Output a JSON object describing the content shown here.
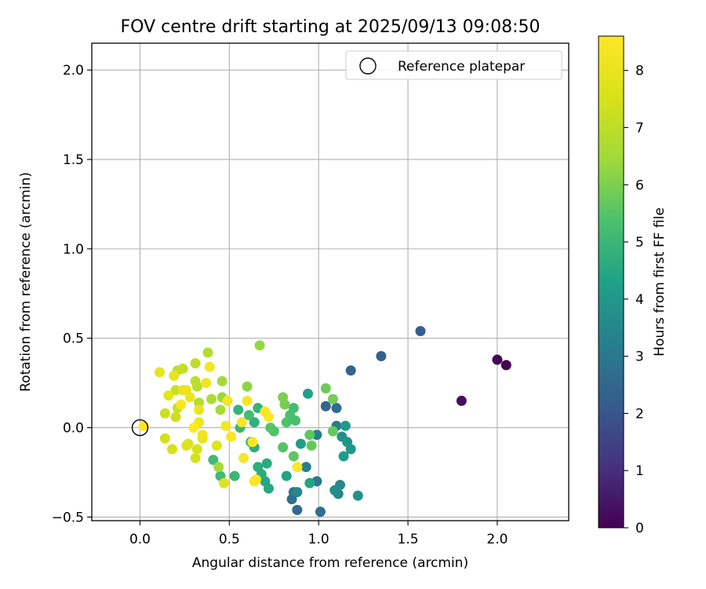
{
  "chart_data": {
    "type": "scatter",
    "title": "FOV centre drift starting at 2025/09/13 09:08:50",
    "xlabel": "Angular distance from reference (arcmin)",
    "ylabel": "Rotation from reference (arcmin)",
    "xlim": [
      -0.27,
      2.4
    ],
    "ylim": [
      -0.52,
      2.15
    ],
    "xticks": [
      0.0,
      0.5,
      1.0,
      1.5,
      2.0
    ],
    "yticks": [
      -0.5,
      0.0,
      0.5,
      1.0,
      1.5,
      2.0
    ],
    "xtick_labels": [
      "0.0",
      "0.5",
      "1.0",
      "1.5",
      "2.0"
    ],
    "ytick_labels": [
      "−0.5",
      "0.0",
      "0.5",
      "1.0",
      "1.5",
      "2.0"
    ],
    "grid": true,
    "legend": {
      "position": "top-right",
      "label": "Reference platepar",
      "marker": "open-circle"
    },
    "reference_point": {
      "x": 0.0,
      "y": 0.0
    },
    "colorbar": {
      "label": "Hours from first FF file",
      "min": 0,
      "max": 8.6,
      "ticks": [
        0,
        1,
        2,
        3,
        4,
        5,
        6,
        7,
        8
      ],
      "tick_labels": [
        "0",
        "1",
        "2",
        "3",
        "4",
        "5",
        "6",
        "7",
        "8"
      ],
      "colormap": "viridis"
    },
    "series": [
      {
        "points": [
          {
            "x": 2.05,
            "y": 0.35,
            "c": 0.0
          },
          {
            "x": 2.0,
            "y": 0.38,
            "c": 0.1
          },
          {
            "x": 1.8,
            "y": 0.15,
            "c": 0.3
          },
          {
            "x": 1.57,
            "y": 0.54,
            "c": 2.2
          },
          {
            "x": 1.35,
            "y": 0.4,
            "c": 2.3
          },
          {
            "x": 1.18,
            "y": 0.32,
            "c": 2.4
          },
          {
            "x": 1.04,
            "y": 0.12,
            "c": 2.5
          },
          {
            "x": 1.1,
            "y": 0.11,
            "c": 2.6
          },
          {
            "x": 0.88,
            "y": -0.46,
            "c": 2.6
          },
          {
            "x": 1.01,
            "y": -0.47,
            "c": 2.7
          },
          {
            "x": 0.85,
            "y": -0.4,
            "c": 2.8
          },
          {
            "x": 0.86,
            "y": -0.36,
            "c": 2.9
          },
          {
            "x": 0.99,
            "y": -0.3,
            "c": 3.0
          },
          {
            "x": 1.1,
            "y": 0.01,
            "c": 3.1
          },
          {
            "x": 0.99,
            "y": -0.04,
            "c": 3.2
          },
          {
            "x": 0.93,
            "y": -0.22,
            "c": 3.3
          },
          {
            "x": 0.88,
            "y": -0.36,
            "c": 3.4
          },
          {
            "x": 1.12,
            "y": -0.32,
            "c": 3.5
          },
          {
            "x": 1.11,
            "y": -0.37,
            "c": 3.6
          },
          {
            "x": 1.09,
            "y": -0.35,
            "c": 3.7
          },
          {
            "x": 1.22,
            "y": -0.38,
            "c": 3.8
          },
          {
            "x": 1.13,
            "y": -0.05,
            "c": 3.8
          },
          {
            "x": 1.16,
            "y": -0.08,
            "c": 3.9
          },
          {
            "x": 1.18,
            "y": -0.12,
            "c": 4.0
          },
          {
            "x": 1.14,
            "y": -0.16,
            "c": 4.1
          },
          {
            "x": 1.15,
            "y": 0.01,
            "c": 4.1
          },
          {
            "x": 0.9,
            "y": -0.09,
            "c": 4.2
          },
          {
            "x": 0.94,
            "y": 0.19,
            "c": 4.3
          },
          {
            "x": 0.95,
            "y": -0.31,
            "c": 4.4
          },
          {
            "x": 0.82,
            "y": -0.27,
            "c": 4.4
          },
          {
            "x": 0.72,
            "y": -0.34,
            "c": 4.5
          },
          {
            "x": 0.7,
            "y": -0.3,
            "c": 4.5
          },
          {
            "x": 0.71,
            "y": -0.2,
            "c": 4.6
          },
          {
            "x": 0.68,
            "y": -0.26,
            "c": 4.6
          },
          {
            "x": 0.66,
            "y": -0.22,
            "c": 4.7
          },
          {
            "x": 0.64,
            "y": -0.11,
            "c": 4.7
          },
          {
            "x": 0.62,
            "y": -0.08,
            "c": 4.8
          },
          {
            "x": 0.64,
            "y": 0.03,
            "c": 4.8
          },
          {
            "x": 0.66,
            "y": 0.11,
            "c": 4.9
          },
          {
            "x": 0.55,
            "y": 0.1,
            "c": 4.9
          },
          {
            "x": 0.56,
            "y": 0.0,
            "c": 5.0
          },
          {
            "x": 0.53,
            "y": -0.27,
            "c": 5.0
          },
          {
            "x": 0.45,
            "y": -0.27,
            "c": 5.1
          },
          {
            "x": 0.41,
            "y": -0.18,
            "c": 5.1
          },
          {
            "x": 0.61,
            "y": 0.07,
            "c": 5.2
          },
          {
            "x": 0.86,
            "y": 0.11,
            "c": 5.2
          },
          {
            "x": 0.84,
            "y": 0.07,
            "c": 5.3
          },
          {
            "x": 0.87,
            "y": 0.04,
            "c": 5.3
          },
          {
            "x": 0.82,
            "y": 0.03,
            "c": 5.4
          },
          {
            "x": 0.75,
            "y": -0.02,
            "c": 5.4
          },
          {
            "x": 0.73,
            "y": 0.0,
            "c": 5.5
          },
          {
            "x": 0.8,
            "y": -0.11,
            "c": 5.5
          },
          {
            "x": 0.86,
            "y": -0.16,
            "c": 5.6
          },
          {
            "x": 0.95,
            "y": -0.04,
            "c": 5.6
          },
          {
            "x": 0.96,
            "y": -0.1,
            "c": 5.7
          },
          {
            "x": 1.08,
            "y": -0.02,
            "c": 5.7
          },
          {
            "x": 1.04,
            "y": 0.22,
            "c": 5.8
          },
          {
            "x": 1.08,
            "y": 0.16,
            "c": 5.9
          },
          {
            "x": 0.81,
            "y": 0.13,
            "c": 5.9
          },
          {
            "x": 0.8,
            "y": 0.17,
            "c": 6.0
          },
          {
            "x": 0.6,
            "y": 0.23,
            "c": 6.2
          },
          {
            "x": 0.67,
            "y": 0.46,
            "c": 6.3
          },
          {
            "x": 0.46,
            "y": 0.17,
            "c": 6.4
          },
          {
            "x": 0.44,
            "y": -0.22,
            "c": 6.5
          },
          {
            "x": 0.46,
            "y": 0.26,
            "c": 6.5
          },
          {
            "x": 0.45,
            "y": 0.1,
            "c": 6.6
          },
          {
            "x": 0.4,
            "y": 0.16,
            "c": 6.7
          },
          {
            "x": 0.38,
            "y": 0.42,
            "c": 6.8
          },
          {
            "x": 0.33,
            "y": 0.14,
            "c": 6.8
          },
          {
            "x": 0.32,
            "y": 0.23,
            "c": 6.9
          },
          {
            "x": 0.31,
            "y": 0.36,
            "c": 7.0
          },
          {
            "x": 0.31,
            "y": 0.26,
            "c": 7.0
          },
          {
            "x": 0.24,
            "y": 0.33,
            "c": 7.1
          },
          {
            "x": 0.21,
            "y": 0.32,
            "c": 7.1
          },
          {
            "x": 0.2,
            "y": 0.21,
            "c": 7.2
          },
          {
            "x": 0.21,
            "y": 0.11,
            "c": 7.2
          },
          {
            "x": 0.2,
            "y": 0.06,
            "c": 7.3
          },
          {
            "x": 0.14,
            "y": 0.08,
            "c": 7.3
          },
          {
            "x": 0.14,
            "y": -0.06,
            "c": 7.4
          },
          {
            "x": 0.18,
            "y": -0.12,
            "c": 7.5
          },
          {
            "x": 0.31,
            "y": -0.17,
            "c": 7.5
          },
          {
            "x": 0.32,
            "y": -0.12,
            "c": 7.6
          },
          {
            "x": 0.27,
            "y": -0.09,
            "c": 7.6
          },
          {
            "x": 0.47,
            "y": -0.31,
            "c": 7.7
          },
          {
            "x": 0.43,
            "y": -0.1,
            "c": 7.7
          },
          {
            "x": 0.35,
            "y": -0.06,
            "c": 7.8
          },
          {
            "x": 0.26,
            "y": -0.1,
            "c": 7.8
          },
          {
            "x": 0.11,
            "y": 0.31,
            "c": 7.9
          },
          {
            "x": 0.16,
            "y": 0.18,
            "c": 7.9
          },
          {
            "x": 0.19,
            "y": 0.29,
            "c": 8.0
          },
          {
            "x": 0.24,
            "y": 0.21,
            "c": 8.0
          },
          {
            "x": 0.26,
            "y": 0.21,
            "c": 8.1
          },
          {
            "x": 0.28,
            "y": 0.17,
            "c": 8.1
          },
          {
            "x": 0.33,
            "y": 0.1,
            "c": 8.1
          },
          {
            "x": 0.33,
            "y": 0.03,
            "c": 8.2
          },
          {
            "x": 0.35,
            "y": -0.04,
            "c": 8.2
          },
          {
            "x": 0.37,
            "y": 0.25,
            "c": 8.2
          },
          {
            "x": 0.39,
            "y": 0.34,
            "c": 8.3
          },
          {
            "x": 0.48,
            "y": 0.01,
            "c": 8.3
          },
          {
            "x": 0.49,
            "y": 0.15,
            "c": 8.3
          },
          {
            "x": 0.51,
            "y": -0.05,
            "c": 8.4
          },
          {
            "x": 0.57,
            "y": 0.03,
            "c": 8.4
          },
          {
            "x": 0.58,
            "y": -0.17,
            "c": 8.4
          },
          {
            "x": 0.6,
            "y": 0.15,
            "c": 8.4
          },
          {
            "x": 0.63,
            "y": -0.08,
            "c": 8.5
          },
          {
            "x": 0.64,
            "y": -0.3,
            "c": 8.5
          },
          {
            "x": 0.65,
            "y": -0.29,
            "c": 8.5
          },
          {
            "x": 0.7,
            "y": 0.09,
            "c": 8.5
          },
          {
            "x": 0.72,
            "y": 0.06,
            "c": 8.6
          },
          {
            "x": 0.88,
            "y": -0.22,
            "c": 8.6
          },
          {
            "x": 0.02,
            "y": 0.01,
            "c": 8.6
          },
          {
            "x": 0.3,
            "y": 0.0,
            "c": 8.6
          },
          {
            "x": 0.23,
            "y": 0.13,
            "c": 8.5
          }
        ]
      }
    ]
  }
}
